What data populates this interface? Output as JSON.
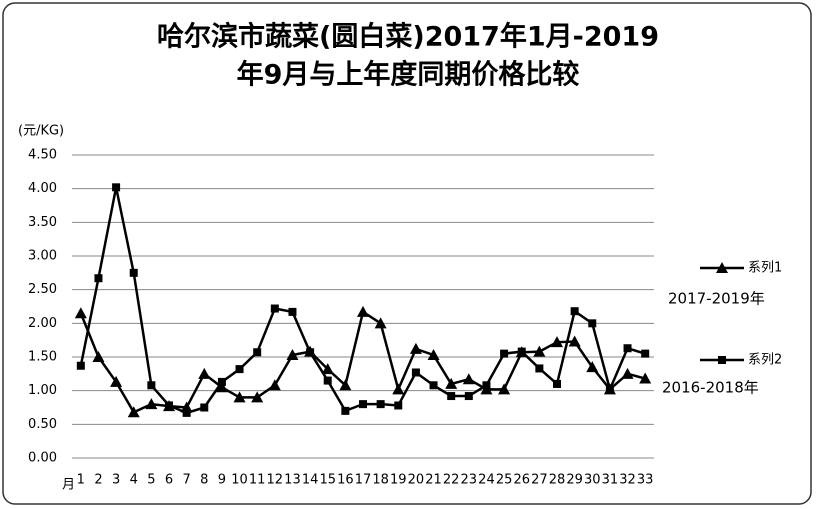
{
  "chart_data": {
    "type": "line",
    "title": [
      "哈尔滨市蔬菜(圆白菜)2017年1月-2019",
      "年9月与上年度同期价格比较"
    ],
    "y_label": "(元/KG)",
    "x_label": "月",
    "categories": [
      "1",
      "2",
      "3",
      "4",
      "5",
      "6",
      "7",
      "8",
      "9",
      "10",
      "11",
      "12",
      "13",
      "14",
      "15",
      "16",
      "17",
      "18",
      "19",
      "20",
      "21",
      "22",
      "23",
      "24",
      "25",
      "26",
      "27",
      "28",
      "29",
      "30",
      "31",
      "32",
      "33"
    ],
    "series": [
      {
        "name": "系列1",
        "note": "2017-2019年",
        "marker": "triangle",
        "color": "#000000",
        "values": [
          2.15,
          1.5,
          1.13,
          0.68,
          0.8,
          0.77,
          0.75,
          1.25,
          1.05,
          0.9,
          0.9,
          1.08,
          1.53,
          1.58,
          1.32,
          1.08,
          2.17,
          2.0,
          1.02,
          1.62,
          1.53,
          1.1,
          1.17,
          1.02,
          1.02,
          1.57,
          1.58,
          1.72,
          1.73,
          1.35,
          1.02,
          1.25,
          1.18
        ]
      },
      {
        "name": "系列2",
        "note": "2016-2018年",
        "marker": "square",
        "color": "#000000",
        "values": [
          1.37,
          2.67,
          4.02,
          2.75,
          1.08,
          0.78,
          0.67,
          0.75,
          1.13,
          1.32,
          1.57,
          2.22,
          2.17,
          1.57,
          1.15,
          0.7,
          0.8,
          0.8,
          0.78,
          1.27,
          1.08,
          0.92,
          0.92,
          1.08,
          1.55,
          1.58,
          1.33,
          1.1,
          2.18,
          2.0,
          1.02,
          1.63,
          1.55
        ]
      }
    ],
    "ylim": [
      0,
      4.5
    ],
    "yticks": [
      {
        "value": 0,
        "label": "0.00"
      },
      {
        "value": 0.5,
        "label": "0.50"
      },
      {
        "value": 1,
        "label": "1.00"
      },
      {
        "value": 1.5,
        "label": "1.50"
      },
      {
        "value": 2,
        "label": "2.00"
      },
      {
        "value": 2.5,
        "label": "2.50"
      },
      {
        "value": 3,
        "label": "3.00"
      },
      {
        "value": 3.5,
        "label": "3.50"
      },
      {
        "value": 4,
        "label": "4.00"
      },
      {
        "value": 4.5,
        "label": "4.50"
      }
    ],
    "grid": true
  }
}
